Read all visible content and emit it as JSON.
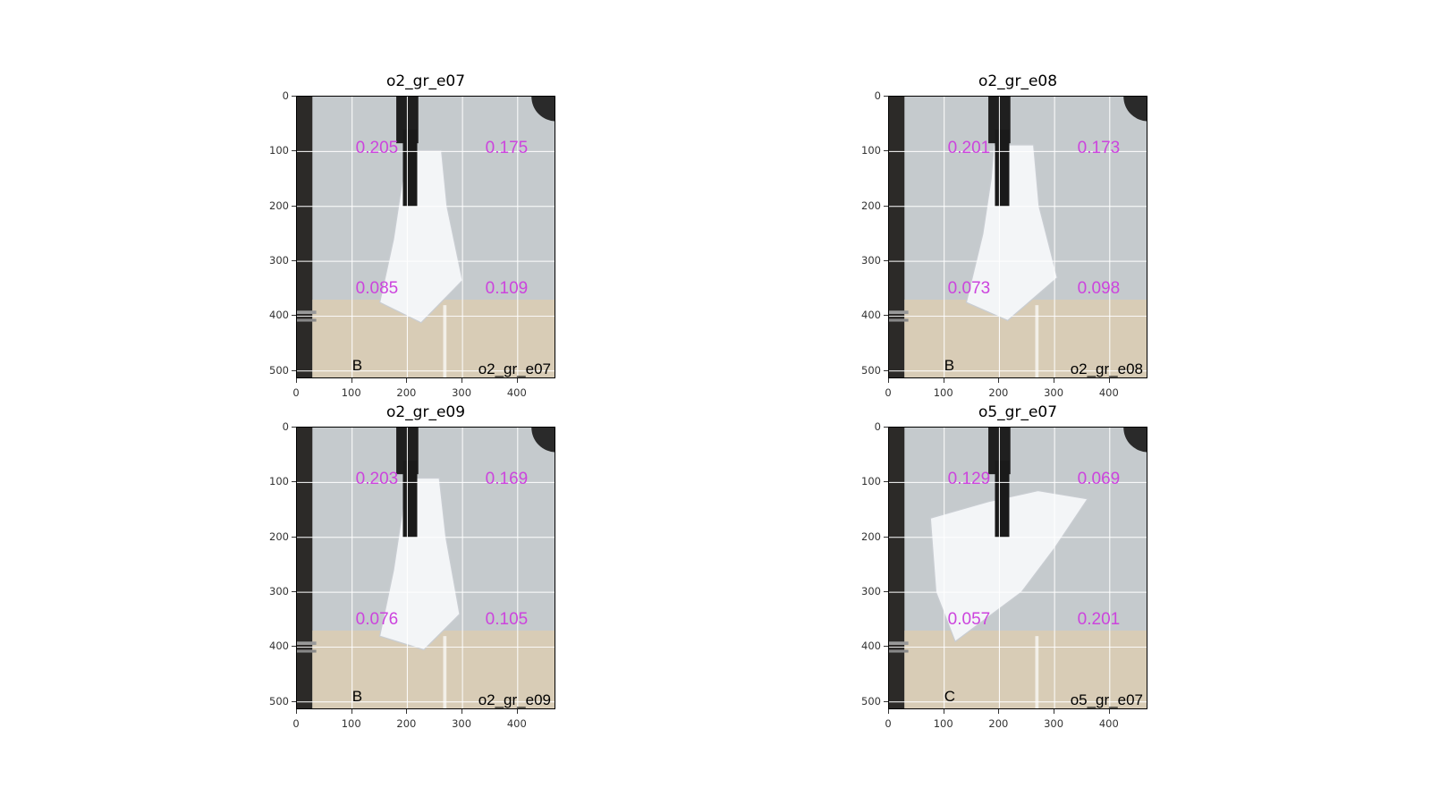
{
  "panels": [
    {
      "title": "o2_gr_e07",
      "letter": "B",
      "tag": "o2_gr_e07",
      "values": [
        "0.205",
        "0.175",
        "0.085",
        "0.109"
      ]
    },
    {
      "title": "o2_gr_e08",
      "letter": "B",
      "tag": "o2_gr_e08",
      "values": [
        "0.201",
        "0.173",
        "0.073",
        "0.098"
      ]
    },
    {
      "title": "o2_gr_e09",
      "letter": "B",
      "tag": "o2_gr_e09",
      "values": [
        "0.203",
        "0.169",
        "0.076",
        "0.105"
      ]
    },
    {
      "title": "o5_gr_e07",
      "letter": "C",
      "tag": "o5_gr_e07",
      "values": [
        "0.129",
        "0.069",
        "0.057",
        "0.201"
      ]
    }
  ],
  "axes": {
    "y_ticks": [
      "0",
      "100",
      "200",
      "300",
      "400",
      "500"
    ],
    "x_ticks": [
      "0",
      "100",
      "200",
      "300",
      "400"
    ]
  },
  "colors": {
    "value_text": "#cc44dd",
    "grid": "#ffffff",
    "wall": "#c5cacd",
    "floor": "#d8ccb6"
  }
}
